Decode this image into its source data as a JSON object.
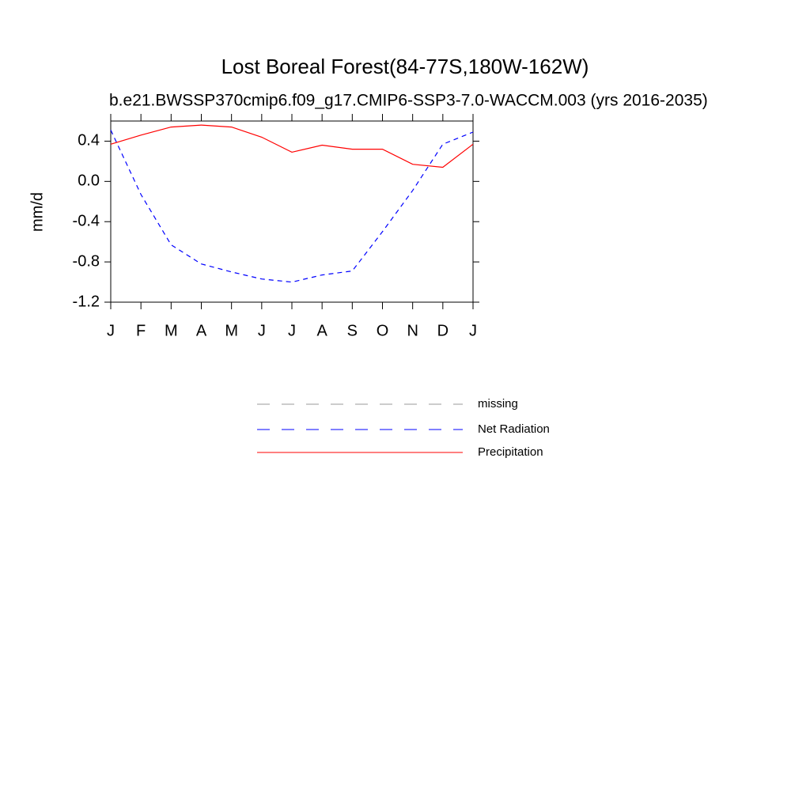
{
  "chart_data": {
    "type": "line",
    "title": "Lost Boreal Forest(84-77S,180W-162W)",
    "subtitle": "b.e21.BWSSP370cmip6.f09_g17.CMIP6-SSP3-7.0-WACCM.003 (yrs 2016-2035)",
    "y_label": "mm/d",
    "categories": [
      "J",
      "F",
      "M",
      "A",
      "M",
      "J",
      "J",
      "A",
      "S",
      "O",
      "N",
      "D",
      "J"
    ],
    "ylim": [
      -1.2,
      0.6
    ],
    "yticks": [
      -1.2,
      -0.8,
      -0.4,
      {
        "value": 0,
        "label": "0.0"
      },
      0.4
    ],
    "series": [
      {
        "name": "missing",
        "color": "#999999",
        "style": "dashed",
        "values": [
          null,
          null,
          null,
          null,
          null,
          null,
          null,
          null,
          null,
          null,
          null,
          null,
          null
        ]
      },
      {
        "name": "Net Radiation",
        "color": "#0000ff",
        "style": "dashed",
        "values": [
          0.51,
          -0.13,
          -0.63,
          -0.82,
          -0.9,
          -0.97,
          -1.0,
          -0.93,
          -0.89,
          -0.5,
          -0.09,
          0.37,
          0.49
        ]
      },
      {
        "name": "Precipitation",
        "color": "#ff0000",
        "style": "solid",
        "values": [
          0.37,
          0.46,
          0.54,
          0.56,
          0.54,
          0.44,
          0.29,
          0.36,
          0.32,
          0.32,
          0.17,
          0.14,
          0.37
        ]
      }
    ]
  }
}
